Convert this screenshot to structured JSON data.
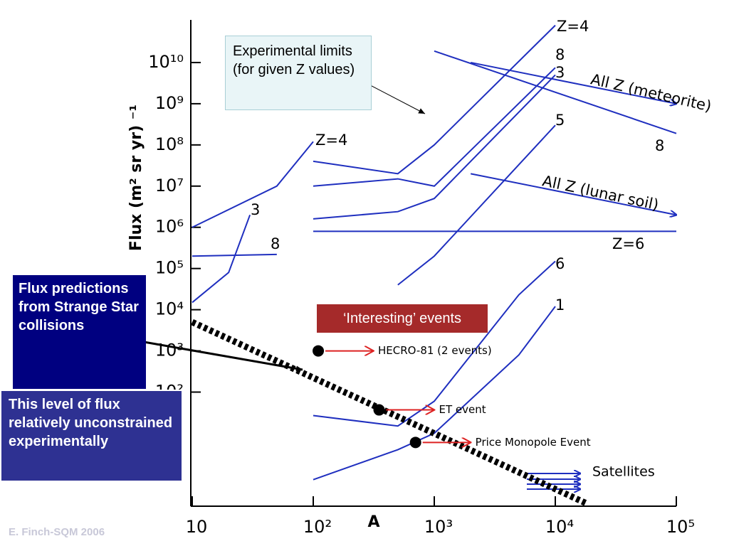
{
  "chart_data": {
    "type": "line",
    "x_label": "A",
    "y_label": "Flux (m² sr yr) ⁻¹",
    "xlim": [
      10,
      100000
    ],
    "ylim": [
      0.17,
      100000000000
    ],
    "xscale": "log",
    "yscale": "log",
    "xticks": [
      10,
      {
        "value": 100,
        "label": "10²"
      },
      {
        "value": 1000,
        "label": "10³"
      },
      {
        "value": 10000,
        "label": "10⁴"
      },
      {
        "value": 100000,
        "label": "10⁵"
      }
    ],
    "yticks": [
      {
        "value": 100,
        "label": "10²"
      },
      {
        "value": 1000,
        "label": "10³"
      },
      {
        "value": 10000,
        "label": "10⁴"
      },
      {
        "value": 100000,
        "label": "10⁵"
      },
      {
        "value": 1000000,
        "label": "10⁶"
      },
      {
        "value": 10000000,
        "label": "10⁷"
      },
      {
        "value": 100000000,
        "label": "10⁸"
      },
      {
        "value": 1000000000,
        "label": "10⁹"
      },
      {
        "value": 10000000000,
        "label": "10¹⁰"
      }
    ],
    "series": [
      {
        "name": "Z=4",
        "color": "#1f2fbf",
        "x": [
          10,
          50,
          100
        ],
        "values": [
          1000000,
          10000000,
          120000000
        ]
      },
      {
        "name": "3",
        "color": "#1f2fbf",
        "x": [
          10,
          20,
          30
        ],
        "values": [
          15000,
          80000,
          2000000
        ]
      },
      {
        "name": "8",
        "color": "#1f2fbf",
        "x": [
          10,
          50
        ],
        "values": [
          200000,
          220000
        ]
      },
      {
        "name": "Z=4",
        "color": "#1f2fbf",
        "x": [
          100,
          500,
          1000,
          10000
        ],
        "values": [
          40000000,
          20000000,
          100000000,
          80000000000
        ]
      },
      {
        "name": "8",
        "color": "#1f2fbf",
        "x": [
          100,
          500,
          1000,
          10000
        ],
        "values": [
          10000000,
          15000000,
          10000000,
          7500000000
        ]
      },
      {
        "name": "3",
        "color": "#1f2fbf",
        "x": [
          100,
          500,
          1000,
          10000
        ],
        "values": [
          1600000,
          2400000,
          5000000,
          5000000000
        ]
      },
      {
        "name": "5",
        "color": "#1f2fbf",
        "x": [
          500,
          1000,
          10000
        ],
        "values": [
          40000,
          200000,
          300000000
        ]
      },
      {
        "name": "Z=6",
        "color": "#1f2fbf",
        "x": [
          100,
          100000
        ],
        "values": [
          800000,
          800000
        ]
      },
      {
        "name": "6",
        "color": "#1f2fbf",
        "x": [
          100,
          500,
          1000,
          5000,
          10000
        ],
        "values": [
          27,
          15,
          60,
          23000,
          150000
        ]
      },
      {
        "name": "1",
        "color": "#1f2fbf",
        "x": [
          100,
          500,
          1000,
          5000,
          10000
        ],
        "values": [
          0.75,
          4,
          10,
          800,
          12000
        ]
      },
      {
        "name": "8",
        "color": "#1f2fbf",
        "x": [
          1000,
          100000
        ],
        "values": [
          19000000000,
          190000000
        ]
      },
      {
        "name": "All Z (meteorite)",
        "color": "#1f2fbf",
        "x": [
          2000,
          100000
        ],
        "values": [
          10000000000,
          1000000000
        ]
      },
      {
        "name": "All Z (lunar soil)",
        "color": "#1f2fbf",
        "x": [
          2000,
          100000
        ],
        "values": [
          20000000,
          2000000
        ]
      },
      {
        "color": "#000000",
        "x": [
          10,
          18000
        ],
        "values": [
          5000,
          0.2
        ]
      }
    ],
    "events": [
      {
        "label": "HECRO-81 (2 events)",
        "x": 110,
        "y": 1000
      },
      {
        "label": "ET event",
        "x": 350,
        "y": 37
      },
      {
        "label": "Price Monopole Event",
        "x": 700,
        "y": 6
      }
    ],
    "satellites_label": "Satellites",
    "annotations": [
      "Experimental limits (for given Z values)",
      "‘Interesting’ events",
      "Flux predictions from Strange Star collisions",
      "This level of flux relatively unconstrained experimentally"
    ]
  },
  "footer": "E. Finch-SQM 2006"
}
